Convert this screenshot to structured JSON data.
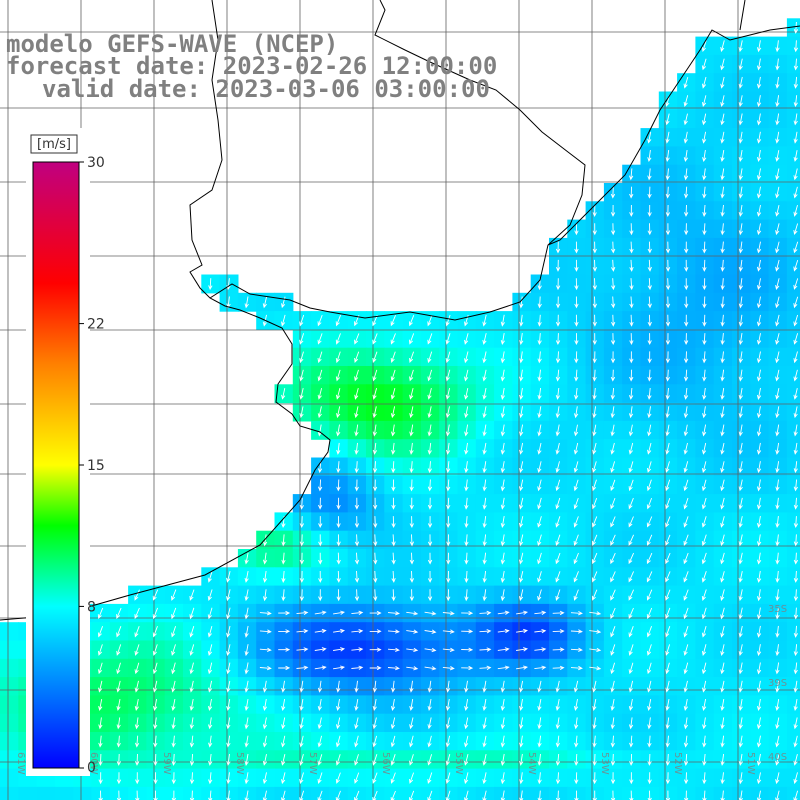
{
  "title": {
    "model": "modelo GEFS-WAVE (NCEP)",
    "forecast": "forecast date: 2023-02-26 12:00:00",
    "valid": "valid date: 2023-03-06 03:00:00"
  },
  "colorbar": {
    "unit": "[m/s]",
    "range": [
      0,
      30
    ],
    "ticks": [
      "30",
      "22",
      "15",
      "8",
      "0"
    ],
    "tick_values": [
      30,
      22,
      15,
      8,
      0
    ],
    "stops": [
      {
        "v": 0,
        "color": "#0000ff"
      },
      {
        "v": 8,
        "color": "#00ffff"
      },
      {
        "v": 12,
        "color": "#00ff00"
      },
      {
        "v": 15,
        "color": "#ffff00"
      },
      {
        "v": 20,
        "color": "#ff8000"
      },
      {
        "v": 24,
        "color": "#ff0000"
      },
      {
        "v": 30,
        "color": "#c00080"
      }
    ]
  },
  "colors": {
    "land": "#ffffff",
    "coast": "#000000",
    "grid": "#606060",
    "arrow": "#ffffff",
    "label": "#808080"
  },
  "map_labels": {
    "lat": [
      "35S",
      "39S",
      "40S"
    ],
    "lon": [
      "61W",
      "60W",
      "59W",
      "58W",
      "57W",
      "56W",
      "55W",
      "54W",
      "53W",
      "52W",
      "51W"
    ]
  },
  "wind_field": {
    "variable": "wind speed",
    "shading": "grid cells"
  }
}
